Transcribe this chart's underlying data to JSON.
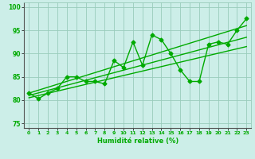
{
  "xlabel": "Humidité relative (%)",
  "xlim": [
    -0.5,
    23.5
  ],
  "ylim": [
    74,
    101
  ],
  "yticks": [
    75,
    80,
    85,
    90,
    95,
    100
  ],
  "xticks": [
    0,
    1,
    2,
    3,
    4,
    5,
    6,
    7,
    8,
    9,
    10,
    11,
    12,
    13,
    14,
    15,
    16,
    17,
    18,
    19,
    20,
    21,
    22,
    23
  ],
  "bg_color": "#cceee8",
  "grid_color": "#99ccbb",
  "line_color": "#00aa00",
  "line1_x": [
    0,
    1,
    2,
    3,
    4,
    5,
    6,
    7,
    8,
    9,
    10,
    11,
    12,
    13,
    14,
    15,
    16,
    17,
    18,
    19,
    20,
    21,
    22,
    23
  ],
  "line1_y": [
    81.5,
    80.3,
    81.5,
    82.5,
    85.0,
    85.0,
    84.0,
    84.0,
    83.5,
    88.5,
    87.0,
    92.5,
    87.5,
    94.0,
    93.0,
    90.0,
    86.5,
    84.0,
    84.0,
    92.0,
    92.5,
    92.0,
    95.0,
    97.5
  ],
  "line2_x": [
    0,
    23
  ],
  "line2_y": [
    80.5,
    91.5
  ],
  "line3_x": [
    0,
    23
  ],
  "line3_y": [
    81.0,
    93.5
  ],
  "line4_x": [
    0,
    23
  ],
  "line4_y": [
    81.5,
    96.0
  ],
  "marker": "D",
  "marker_size": 2.5,
  "linewidth": 1.0,
  "xlabel_size": 6,
  "ytick_size": 5.5,
  "xtick_size": 4.5
}
